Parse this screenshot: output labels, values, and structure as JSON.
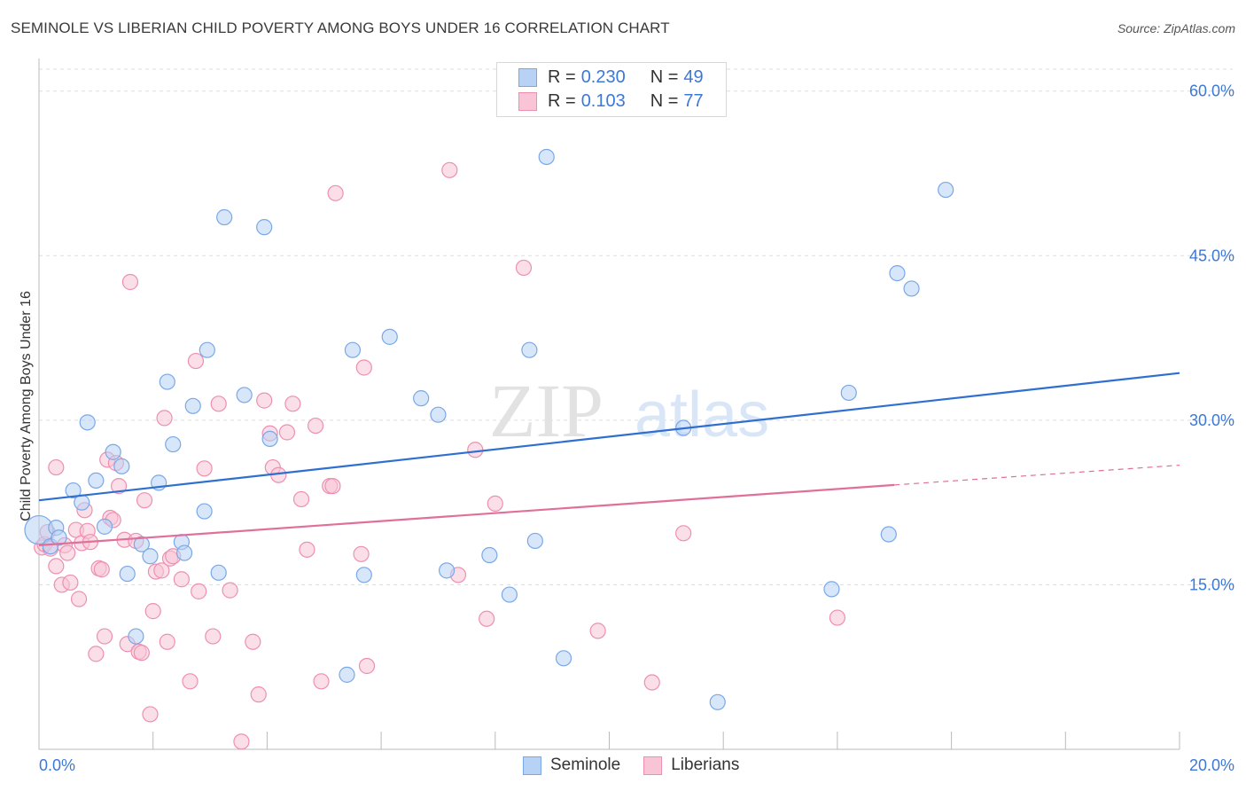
{
  "title": "SEMINOLE VS LIBERIAN CHILD POVERTY AMONG BOYS UNDER 16 CORRELATION CHART",
  "source": "Source: ZipAtlas.com",
  "watermark": {
    "zip": "ZIP",
    "atlas": "atlas"
  },
  "legend": {
    "rows": [
      {
        "r_label": "R =",
        "r_value": "0.230",
        "n_label": "N =",
        "n_value": "49"
      },
      {
        "r_label": "R =",
        "r_value": "0.103",
        "n_label": "N =",
        "n_value": "77"
      }
    ]
  },
  "colors": {
    "seminole_fill": "#b8d2f5",
    "seminole_stroke": "#7aa8e6",
    "seminole_line": "#2f6fd0",
    "liberian_fill": "#f8c4d6",
    "liberian_stroke": "#ee8fb0",
    "liberian_line": "#e0709a",
    "tick_label": "#3b78d8",
    "grid": "#dddddd"
  },
  "chart_data": {
    "type": "scatter",
    "title": "SEMINOLE VS LIBERIAN CHILD POVERTY AMONG BOYS UNDER 16 CORRELATION CHART",
    "xlabel": "",
    "ylabel": "Child Poverty Among Boys Under 16",
    "xlim": [
      0,
      20
    ],
    "ylim": [
      0,
      62
    ],
    "x_tick_labels": [
      "0.0%",
      "20.0%"
    ],
    "y_ticks": [
      15,
      30,
      45,
      60
    ],
    "y_tick_labels": [
      "15.0%",
      "30.0%",
      "45.0%",
      "60.0%"
    ],
    "grid": true,
    "legend_position": "bottom",
    "series": [
      {
        "name": "Seminole",
        "r": 0.23,
        "n": 49,
        "trend": {
          "x": [
            0,
            20
          ],
          "y": [
            22.7,
            34.3
          ]
        },
        "points": [
          [
            0.0,
            20.0
          ],
          [
            0.3,
            20.2
          ],
          [
            0.2,
            18.5
          ],
          [
            0.35,
            19.3
          ],
          [
            0.6,
            23.6
          ],
          [
            0.75,
            22.5
          ],
          [
            0.85,
            29.8
          ],
          [
            1.0,
            24.5
          ],
          [
            1.15,
            20.3
          ],
          [
            1.3,
            27.1
          ],
          [
            1.45,
            25.8
          ],
          [
            1.55,
            16.0
          ],
          [
            1.7,
            10.3
          ],
          [
            1.8,
            18.7
          ],
          [
            1.95,
            17.6
          ],
          [
            2.1,
            24.3
          ],
          [
            2.25,
            33.5
          ],
          [
            2.35,
            27.8
          ],
          [
            2.5,
            18.9
          ],
          [
            2.55,
            17.9
          ],
          [
            2.7,
            31.3
          ],
          [
            2.9,
            21.7
          ],
          [
            2.95,
            36.4
          ],
          [
            3.15,
            16.1
          ],
          [
            3.25,
            48.5
          ],
          [
            3.6,
            32.3
          ],
          [
            3.95,
            47.6
          ],
          [
            4.05,
            28.3
          ],
          [
            5.5,
            36.4
          ],
          [
            5.4,
            6.8
          ],
          [
            5.7,
            15.9
          ],
          [
            6.15,
            37.6
          ],
          [
            6.7,
            32.0
          ],
          [
            7.0,
            30.5
          ],
          [
            7.15,
            16.3
          ],
          [
            7.9,
            17.7
          ],
          [
            8.25,
            14.1
          ],
          [
            8.6,
            36.4
          ],
          [
            8.7,
            19.0
          ],
          [
            8.9,
            54.0
          ],
          [
            9.2,
            8.3
          ],
          [
            11.3,
            29.3
          ],
          [
            11.9,
            4.3
          ],
          [
            13.9,
            14.6
          ],
          [
            14.2,
            32.5
          ],
          [
            14.9,
            19.6
          ],
          [
            15.05,
            43.4
          ],
          [
            15.3,
            42.0
          ],
          [
            15.9,
            51.0
          ]
        ]
      },
      {
        "name": "Liberians",
        "r": 0.103,
        "n": 77,
        "trend": {
          "x": [
            0,
            15
          ],
          "y": [
            18.6,
            24.1
          ]
        },
        "trend_dashed": {
          "x": [
            15,
            20
          ],
          "y": [
            24.1,
            25.9
          ]
        },
        "points": [
          [
            0.05,
            18.4
          ],
          [
            0.1,
            18.7
          ],
          [
            0.15,
            19.8
          ],
          [
            0.2,
            18.3
          ],
          [
            0.3,
            25.7
          ],
          [
            0.3,
            16.7
          ],
          [
            0.4,
            15.0
          ],
          [
            0.45,
            18.6
          ],
          [
            0.5,
            17.9
          ],
          [
            0.55,
            15.2
          ],
          [
            0.65,
            20.0
          ],
          [
            0.7,
            13.7
          ],
          [
            0.75,
            18.8
          ],
          [
            0.8,
            21.8
          ],
          [
            0.85,
            19.9
          ],
          [
            0.9,
            18.9
          ],
          [
            1.0,
            8.7
          ],
          [
            1.05,
            16.5
          ],
          [
            1.1,
            16.4
          ],
          [
            1.15,
            10.3
          ],
          [
            1.2,
            26.4
          ],
          [
            1.25,
            21.1
          ],
          [
            1.3,
            20.9
          ],
          [
            1.35,
            26.1
          ],
          [
            1.4,
            24.0
          ],
          [
            1.5,
            19.1
          ],
          [
            1.55,
            9.6
          ],
          [
            1.6,
            42.6
          ],
          [
            1.7,
            19.0
          ],
          [
            1.75,
            8.9
          ],
          [
            1.8,
            8.8
          ],
          [
            1.85,
            22.7
          ],
          [
            1.95,
            3.2
          ],
          [
            2.0,
            12.6
          ],
          [
            2.05,
            16.2
          ],
          [
            2.15,
            16.3
          ],
          [
            2.2,
            30.2
          ],
          [
            2.25,
            9.8
          ],
          [
            2.3,
            17.4
          ],
          [
            2.35,
            17.6
          ],
          [
            2.5,
            15.5
          ],
          [
            2.65,
            6.2
          ],
          [
            2.75,
            35.4
          ],
          [
            2.8,
            14.4
          ],
          [
            2.9,
            25.6
          ],
          [
            3.05,
            10.3
          ],
          [
            3.15,
            31.5
          ],
          [
            3.35,
            14.5
          ],
          [
            3.55,
            0.7
          ],
          [
            3.75,
            9.8
          ],
          [
            3.85,
            5.0
          ],
          [
            3.95,
            31.8
          ],
          [
            4.05,
            28.8
          ],
          [
            4.1,
            25.7
          ],
          [
            4.2,
            25.0
          ],
          [
            4.35,
            28.9
          ],
          [
            4.45,
            31.5
          ],
          [
            4.6,
            22.8
          ],
          [
            4.7,
            18.2
          ],
          [
            4.85,
            29.5
          ],
          [
            4.95,
            6.2
          ],
          [
            5.1,
            24.0
          ],
          [
            5.15,
            24.0
          ],
          [
            5.2,
            50.7
          ],
          [
            5.65,
            17.8
          ],
          [
            5.7,
            34.8
          ],
          [
            5.75,
            7.6
          ],
          [
            7.2,
            52.8
          ],
          [
            7.35,
            15.9
          ],
          [
            7.65,
            27.3
          ],
          [
            7.85,
            11.9
          ],
          [
            8.0,
            22.4
          ],
          [
            8.5,
            43.9
          ],
          [
            9.8,
            10.8
          ],
          [
            10.75,
            6.1
          ],
          [
            11.3,
            19.7
          ],
          [
            14.0,
            12.0
          ]
        ]
      }
    ]
  }
}
